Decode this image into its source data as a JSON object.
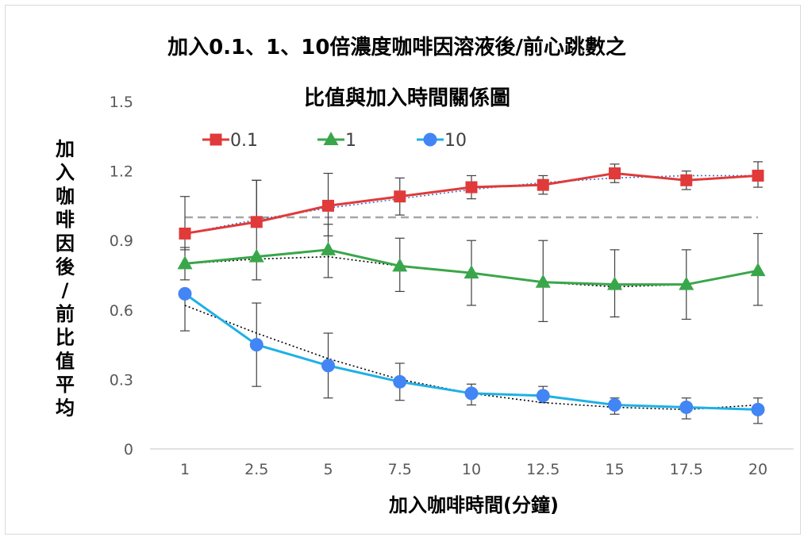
{
  "chart_data": {
    "type": "line",
    "title_line1": "加入0.1、1、10倍濃度咖啡因溶液後/前心跳數之",
    "title_line2": "比值與加入時間關係圖",
    "xlabel": "加入咖啡時間(分鐘)",
    "ylabel": "加入咖啡因後/前比值平均",
    "categories": [
      "1",
      "2.5",
      "5",
      "7.5",
      "10",
      "12.5",
      "15",
      "17.5",
      "20"
    ],
    "y_ticks": [
      "0",
      "0.3",
      "0.6",
      "0.9",
      "1.2",
      "1.5"
    ],
    "ylim": [
      0,
      1.5
    ],
    "reference_line": 1.0,
    "legend_position": "top",
    "grid": false,
    "series": [
      {
        "name": "0.1",
        "color": "#e03a3a",
        "marker": "square",
        "values": [
          0.93,
          0.98,
          1.05,
          1.09,
          1.13,
          1.14,
          1.19,
          1.16,
          1.18
        ],
        "err_low": [
          0.86,
          0.96,
          0.92,
          1.01,
          1.08,
          1.1,
          1.15,
          1.12,
          1.13
        ],
        "err_high": [
          1.09,
          1.16,
          1.19,
          1.17,
          1.18,
          1.18,
          1.23,
          1.2,
          1.24
        ],
        "trend": [
          0.93,
          0.99,
          1.04,
          1.08,
          1.12,
          1.15,
          1.17,
          1.18,
          1.18
        ]
      },
      {
        "name": "1",
        "color": "#3aa64b",
        "marker": "triangle",
        "values": [
          0.8,
          0.83,
          0.86,
          0.79,
          0.76,
          0.72,
          0.71,
          0.71,
          0.77
        ],
        "err_low": [
          0.73,
          0.73,
          0.74,
          0.68,
          0.62,
          0.55,
          0.57,
          0.56,
          0.62
        ],
        "err_high": [
          0.87,
          1.16,
          0.97,
          0.91,
          0.9,
          0.9,
          0.86,
          0.86,
          0.93
        ],
        "trend": [
          0.8,
          0.82,
          0.83,
          0.79,
          0.76,
          0.72,
          0.7,
          0.71,
          0.77
        ]
      },
      {
        "name": "10",
        "color": "#4285f4",
        "line_color": "#1fb0e6",
        "marker": "circle",
        "values": [
          0.67,
          0.45,
          0.36,
          0.29,
          0.24,
          0.23,
          0.19,
          0.18,
          0.17
        ],
        "err_low": [
          0.51,
          0.27,
          0.22,
          0.21,
          0.19,
          0.2,
          0.15,
          0.13,
          0.11
        ],
        "err_high": [
          0.67,
          0.63,
          0.5,
          0.37,
          0.28,
          0.27,
          0.22,
          0.22,
          0.22
        ],
        "trend": [
          0.62,
          0.5,
          0.39,
          0.3,
          0.24,
          0.2,
          0.18,
          0.17,
          0.19
        ]
      }
    ],
    "reference_color": "#a6a6a6"
  }
}
